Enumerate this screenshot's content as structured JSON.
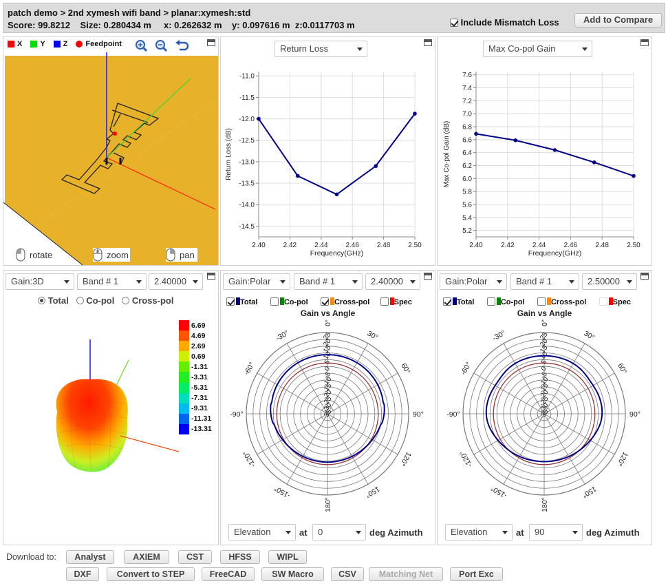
{
  "header": {
    "breadcrumb": "patch demo > 2nd xymesh wifi band > planar:xymesh:std",
    "score_label": "Score:",
    "score": "99.8212",
    "size_label": "Size:",
    "size": "0.280434 m",
    "x_label": "x:",
    "x": "0.262632 m",
    "y_label": "y:",
    "y": "0.097616 m",
    "z_label": "z:",
    "z": "0.0117703 m",
    "mismatch_label": "Include Mismatch Loss",
    "compare_label": "Add to Compare"
  },
  "view3d": {
    "legend": {
      "x": "X",
      "y": "Y",
      "z": "Z",
      "feed": "Feedpoint"
    },
    "rotate": "rotate",
    "zoom": "zoom",
    "pan": "pan",
    "colors": {
      "x": "#ff0000",
      "y": "#00dd00",
      "z": "#0000ff",
      "feed": "#ff0000",
      "ground": "#e8b12a"
    }
  },
  "return_loss": {
    "dropdown": "Return Loss",
    "chart_data": {
      "type": "line",
      "x": [
        2.4,
        2.425,
        2.45,
        2.475,
        2.5
      ],
      "values": [
        -12.0,
        -13.33,
        -13.76,
        -13.1,
        -11.88
      ],
      "xlabel": "Frequency(GHz)",
      "ylabel": "Return Loss (dB)",
      "xlim": [
        2.4,
        2.5
      ],
      "ylim": [
        -14.75,
        -10.9
      ],
      "xticks": [
        "2.40",
        "2.42",
        "2.44",
        "2.46",
        "2.48",
        "2.50"
      ],
      "yticks": [
        "-11.0",
        "-11.5",
        "-12.0",
        "-12.5",
        "-13.0",
        "-13.5",
        "-14.0",
        "-14.5"
      ],
      "grid": true,
      "color": "#00008b"
    }
  },
  "copol_gain": {
    "dropdown": "Max Co-pol Gain",
    "chart_data": {
      "type": "line",
      "x": [
        2.4,
        2.425,
        2.45,
        2.475,
        2.5
      ],
      "values": [
        6.69,
        6.59,
        6.44,
        6.25,
        6.04
      ],
      "xlabel": "Frequency(GHz)",
      "ylabel": "Max Co-pol Gain (dB)",
      "xlim": [
        2.4,
        2.5
      ],
      "ylim": [
        5.1,
        7.65
      ],
      "xticks": [
        "2.40",
        "2.42",
        "2.44",
        "2.46",
        "2.48",
        "2.50"
      ],
      "yticks": [
        "7.6",
        "7.4",
        "7.2",
        "7.0",
        "6.8",
        "6.6",
        "6.4",
        "6.2",
        "6.0",
        "5.8",
        "5.6",
        "5.4",
        "5.2"
      ],
      "grid": true,
      "color": "#00008b"
    }
  },
  "gain3d": {
    "mode": "Gain:3D",
    "band": "Band # 1",
    "freq": "2.40000",
    "total": "Total",
    "copol": "Co-pol",
    "crosspol": "Cross-pol",
    "colorbar": [
      {
        "label": "6.69",
        "color": "#ff0000"
      },
      {
        "label": "4.69",
        "color": "#ff5500"
      },
      {
        "label": "2.69",
        "color": "#ffaa00"
      },
      {
        "label": "0.69",
        "color": "#ccee00"
      },
      {
        "label": "-1.31",
        "color": "#66ee00"
      },
      {
        "label": "-3.31",
        "color": "#22ee22"
      },
      {
        "label": "-5.31",
        "color": "#00ee66"
      },
      {
        "label": "-7.31",
        "color": "#00ddbb"
      },
      {
        "label": "-9.31",
        "color": "#00bbee"
      },
      {
        "label": "-11.31",
        "color": "#0066ee"
      },
      {
        "label": "-13.31",
        "color": "#0000ee"
      }
    ]
  },
  "polar1": {
    "mode": "Gain:Polar",
    "band": "Band # 1",
    "freq": "2.40000",
    "chk_total": "Total",
    "chk_copol": "Co-pol",
    "chk_crosspol": "Cross-pol",
    "chk_spec": "Spec",
    "title": "Gain vs Angle",
    "plane": "Elevation",
    "at": "at",
    "angle": "0",
    "suffix": "deg Azimuth"
  },
  "polar2": {
    "mode": "Gain:Polar",
    "band": "Band # 1",
    "freq": "2.50000",
    "chk_total": "Total",
    "chk_copol": "Co-pol",
    "chk_crosspol": "Cross-pol",
    "chk_spec": "Spec",
    "title": "Gain vs Angle",
    "plane": "Elevation",
    "at": "at",
    "angle": "90",
    "suffix": "deg Azimuth"
  },
  "polar_common": {
    "rticks": [
      "25",
      "20",
      "15",
      "10",
      "5",
      "0",
      "-5",
      "-10",
      "-15",
      "-20",
      "-25",
      "-30",
      "-35"
    ],
    "angles": [
      "0°",
      "30°",
      "60°",
      "90°",
      "120°",
      "150°",
      "180°",
      "-150°",
      "-120°",
      "-90°",
      "-60°",
      "-30°"
    ],
    "colors": {
      "total": "#00008b",
      "copol": "#008800",
      "crosspol": "#ff8800",
      "spec": "#ff0000"
    }
  },
  "downloads": {
    "label": "Download to:",
    "row1": [
      "Analyst",
      "AXIEM",
      "CST",
      "HFSS",
      "WIPL"
    ],
    "row2": [
      "DXF",
      "Convert to STEP",
      "FreeCAD",
      "SW Macro",
      "CSV",
      "Matching Net",
      "Port Exc"
    ]
  }
}
